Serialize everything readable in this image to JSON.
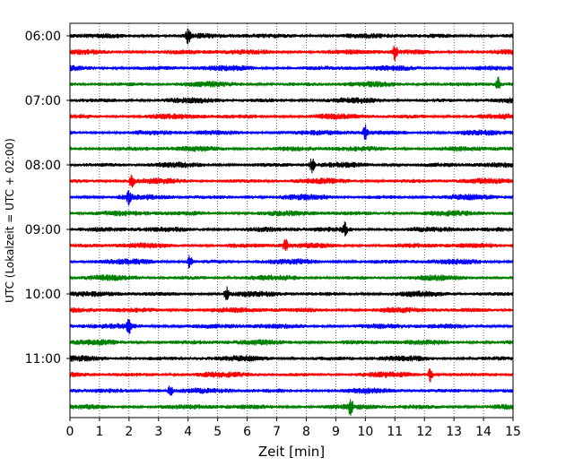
{
  "chart_data": {
    "type": "line",
    "title": "",
    "xlabel": "Zeit  [min]",
    "ylabel": "UTC (Lokalzeit = UTC + 02:00)",
    "xlim": [
      0,
      15
    ],
    "xticks": [
      "0",
      "1",
      "2",
      "3",
      "4",
      "5",
      "6",
      "7",
      "8",
      "9",
      "10",
      "11",
      "12",
      "13",
      "14",
      "15"
    ],
    "yticks": [
      "06:00",
      "07:00",
      "08:00",
      "09:00",
      "10:00",
      "11:00"
    ],
    "grid": "vertical dotted at each minute",
    "trace_interval_min": 15,
    "color_cycle": [
      "#000000",
      "#ff0000",
      "#0000ff",
      "#008000"
    ],
    "series": [
      {
        "start": "06:00",
        "events": [
          4.0
        ]
      },
      {
        "start": "06:15",
        "events": [
          11.0
        ]
      },
      {
        "start": "06:30",
        "events": []
      },
      {
        "start": "06:45",
        "events": [
          14.5
        ]
      },
      {
        "start": "07:00",
        "events": []
      },
      {
        "start": "07:15",
        "events": []
      },
      {
        "start": "07:30",
        "events": [
          10.0
        ]
      },
      {
        "start": "07:45",
        "events": []
      },
      {
        "start": "08:00",
        "events": [
          8.2
        ]
      },
      {
        "start": "08:15",
        "events": [
          2.1
        ]
      },
      {
        "start": "08:30",
        "events": [
          2.0
        ]
      },
      {
        "start": "08:45",
        "events": []
      },
      {
        "start": "09:00",
        "events": [
          9.3
        ]
      },
      {
        "start": "09:15",
        "events": [
          7.3
        ]
      },
      {
        "start": "09:30",
        "events": [
          4.05
        ]
      },
      {
        "start": "09:45",
        "events": []
      },
      {
        "start": "10:00",
        "events": [
          5.3
        ]
      },
      {
        "start": "10:15",
        "events": []
      },
      {
        "start": "10:30",
        "events": [
          2.0
        ]
      },
      {
        "start": "10:45",
        "events": []
      },
      {
        "start": "11:00",
        "events": []
      },
      {
        "start": "11:15",
        "events": [
          12.2
        ]
      },
      {
        "start": "11:30",
        "events": [
          3.4
        ]
      },
      {
        "start": "11:45",
        "events": [
          9.5
        ]
      }
    ]
  }
}
